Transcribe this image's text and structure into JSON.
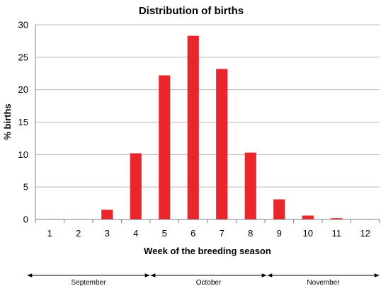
{
  "chart_data": {
    "type": "bar",
    "title": "Distribution of births",
    "xlabel": "Week of the breeding season",
    "ylabel": "% births",
    "categories": [
      "1",
      "2",
      "3",
      "4",
      "5",
      "6",
      "7",
      "8",
      "9",
      "10",
      "11",
      "12"
    ],
    "values": [
      0,
      0.05,
      1.5,
      10.2,
      22.2,
      28.3,
      23.2,
      10.3,
      3.1,
      0.6,
      0.2,
      0.05
    ],
    "ylim": [
      0,
      30
    ],
    "yticks": [
      0,
      5,
      10,
      15,
      20,
      25,
      30
    ],
    "grid": true,
    "legend": "none",
    "bar_color": "#e8262b",
    "months": [
      {
        "label": "September",
        "weeks": [
          1,
          4
        ]
      },
      {
        "label": "October",
        "weeks": [
          5,
          8
        ]
      },
      {
        "label": "November",
        "weeks": [
          9,
          12
        ]
      }
    ]
  }
}
